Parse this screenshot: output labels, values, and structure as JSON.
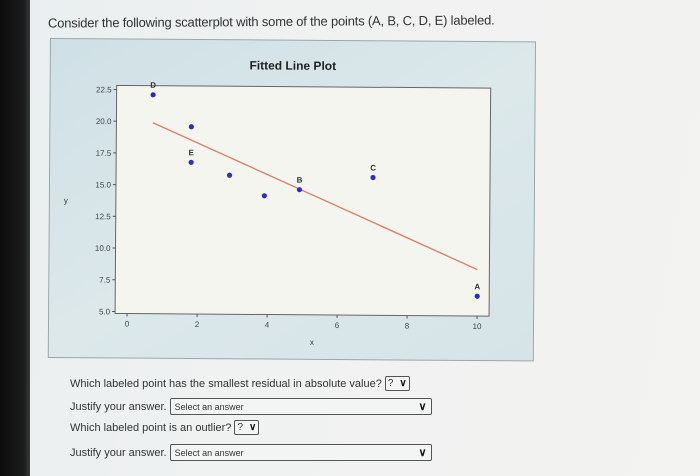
{
  "prompt": "Consider the following scatterplot with some of the points (A, B, C, D, E) labeled.",
  "chart_data": {
    "type": "scatter",
    "title": "Fitted Line Plot",
    "xlabel": "x",
    "ylabel": "y",
    "xlim": [
      0,
      10
    ],
    "ylim": [
      5.0,
      22.5
    ],
    "x_ticks": [
      "0",
      "2",
      "4",
      "6",
      "8",
      "10"
    ],
    "y_ticks": [
      "5.0",
      "7.5",
      "10.0",
      "12.5",
      "15.0",
      "17.5",
      "20.0",
      "22.5"
    ],
    "grid": false,
    "points": [
      {
        "label": "D",
        "x": 0.7,
        "y": 22.1
      },
      {
        "label": "",
        "x": 1.8,
        "y": 19.6
      },
      {
        "label": "E",
        "x": 1.8,
        "y": 16.8
      },
      {
        "label": "",
        "x": 2.9,
        "y": 15.8
      },
      {
        "label": "",
        "x": 3.9,
        "y": 14.2
      },
      {
        "label": "B",
        "x": 4.9,
        "y": 14.7
      },
      {
        "label": "C",
        "x": 7.0,
        "y": 15.7
      },
      {
        "label": "A",
        "x": 10.0,
        "y": 6.4
      }
    ],
    "fitted_line": {
      "x_start": 0.7,
      "y_start": 19.9,
      "x_end": 10.0,
      "y_end": 8.5
    },
    "point_color": "#2b2bd6",
    "line_color": "#d9826a"
  },
  "questions": [
    {
      "text": "Which labeled point has the smallest residual in absolute value?",
      "select_value": "?"
    },
    {
      "text": "Justify your answer.",
      "select_value": "Select an answer"
    },
    {
      "text": "Which labeled point is an outlier?",
      "select_value": "?"
    },
    {
      "text": "Justify your answer.",
      "select_value": "Select an answer"
    }
  ],
  "icons": {
    "dropdown": "chevron-down-icon"
  },
  "chevron": "∨"
}
